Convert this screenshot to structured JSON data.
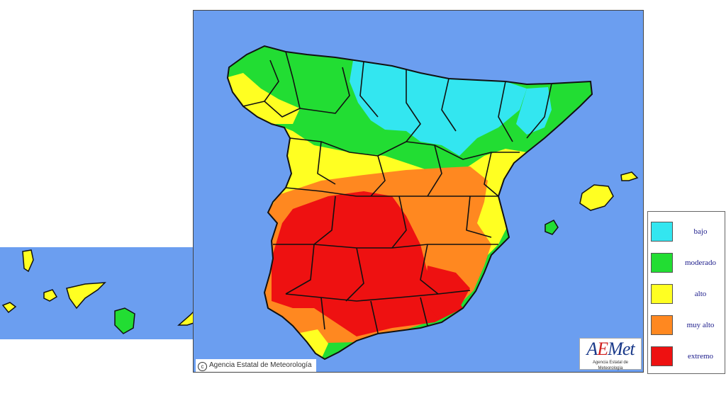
{
  "copyright": "Agencia Estatal de Meteorología",
  "logo": {
    "mark_a": "A",
    "mark_e": "E",
    "mark_rest": "Met",
    "subtitle": "Agencia Estatal de Meteorología"
  },
  "legend": {
    "items": [
      {
        "label": "bajo",
        "color": "#33e6f0"
      },
      {
        "label": "moderado",
        "color": "#22dd33"
      },
      {
        "label": "alto",
        "color": "#ffff22"
      },
      {
        "label": "muy alto",
        "color": "#ff8820"
      },
      {
        "label": "extremo",
        "color": "#ee1111"
      }
    ]
  },
  "colors": {
    "sea": "#6b9ef0",
    "border": "#111111"
  }
}
